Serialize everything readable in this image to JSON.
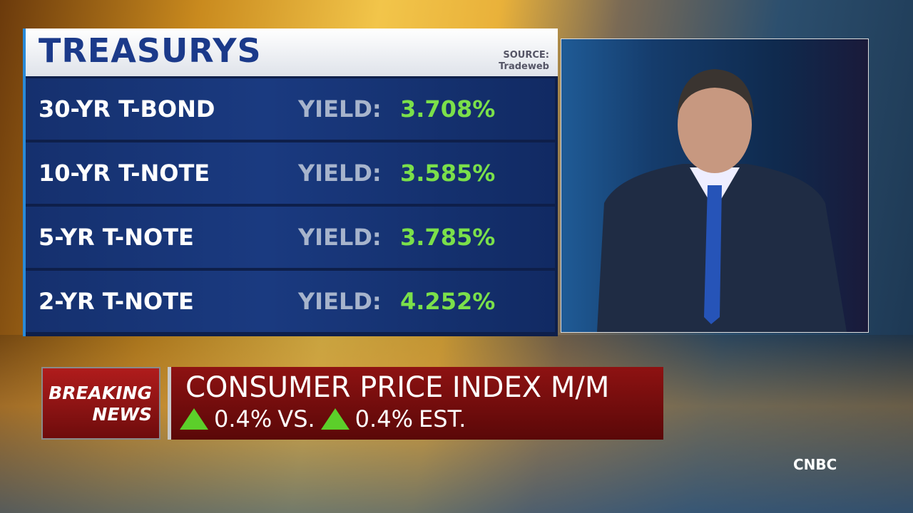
{
  "header": {
    "title": "TREASURYS",
    "source_label": "SOURCE:",
    "source": "Tradeweb"
  },
  "table": {
    "rows": [
      [
        "30-YR T-BOND",
        "YIELD:",
        "3.708%"
      ],
      [
        "10-YR T-NOTE",
        "YIELD:",
        "3.585%"
      ],
      [
        "5-YR T-NOTE",
        "YIELD:",
        "3.785%"
      ],
      [
        "2-YR T-NOTE",
        "YIELD:",
        "4.252%"
      ]
    ]
  },
  "breaking": {
    "line1": "BREAKING",
    "line2": "NEWS"
  },
  "headline": {
    "title": "CONSUMER PRICE INDEX M/M",
    "actual": "0.4%",
    "versus": "VS.",
    "estimate": "0.4%",
    "estimate_label": "EST."
  },
  "logo": "CNBC"
}
